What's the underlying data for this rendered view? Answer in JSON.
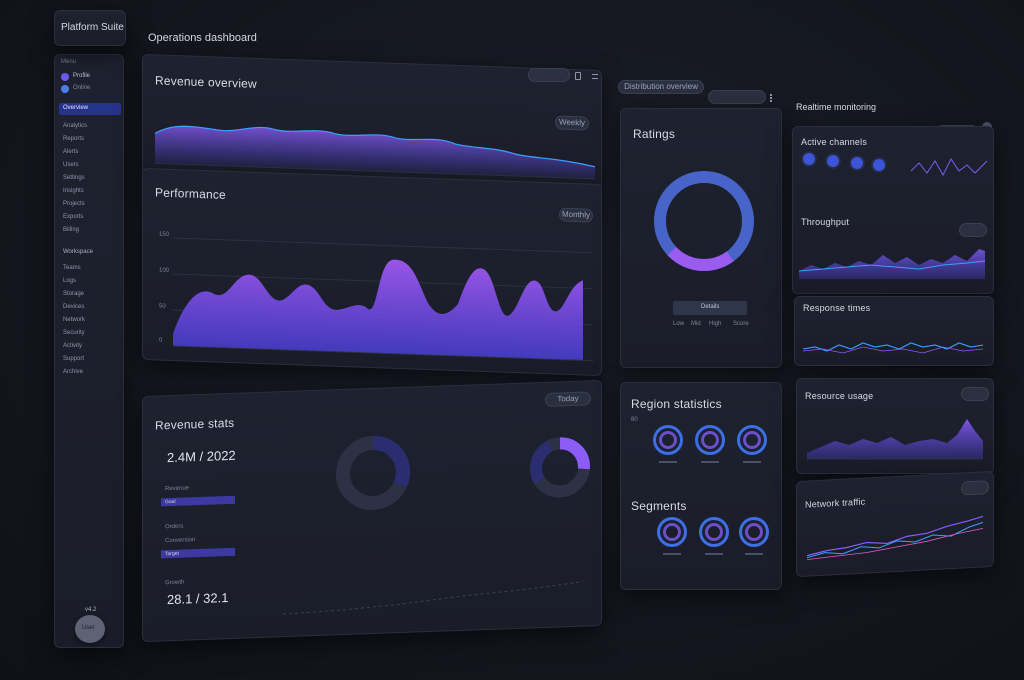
{
  "app": {
    "brand": "Platform Suite",
    "page_title": "Operations dashboard"
  },
  "sidebar": {
    "section_label": "Menu",
    "profile_label": "Profile",
    "profile_sub": "Online",
    "active_item": "Overview",
    "items": [
      "Analytics",
      "Reports",
      "Alerts",
      "Users",
      "Settings",
      "Insights",
      "Projects",
      "Exports",
      "Billing"
    ],
    "group_label": "Workspace",
    "group_items": [
      "Teams",
      "Logs",
      "Storage",
      "Devices",
      "Network",
      "Security",
      "Activity",
      "Support",
      "Archive"
    ],
    "footer_label": "v4.2",
    "avatar_label": "User"
  },
  "panels": {
    "top_chart": {
      "title": "Revenue overview",
      "control": "Weekly"
    },
    "main_chart": {
      "title": "Performance",
      "control": "Monthly",
      "y_ticks": [
        "150",
        "100",
        "50",
        "0"
      ]
    },
    "summary": {
      "title": "Revenue stats",
      "control": "Today",
      "value_1": "2.4M / 2022",
      "label_1": "Revenue",
      "bar_1_label": "Goal",
      "label_2": "Orders",
      "label_3": "Conversion",
      "bar_2_label": "Target",
      "label_4": "Growth",
      "value_2": "28.1 / 32.1"
    },
    "donut_panel": {
      "title": "Ratings",
      "header": "Distribution overview",
      "button": "Details",
      "left_labels": [
        "Low",
        "Mid",
        "High"
      ],
      "right_label": "Score"
    },
    "rings_panel": {
      "title": "Region statistics",
      "axis_label": "80",
      "title_2": "Segments"
    },
    "right_header": "Realtime monitoring",
    "right_cards": [
      {
        "title": "Active channels"
      },
      {
        "title": "Throughput"
      },
      {
        "title": "Response times"
      },
      {
        "title": "Resource usage"
      },
      {
        "title": "Network traffic"
      }
    ]
  },
  "colors": {
    "accent": "#7b5cf0",
    "accent_2": "#4f6fe0",
    "panel": "#1c2030",
    "bg": "#14171f"
  }
}
